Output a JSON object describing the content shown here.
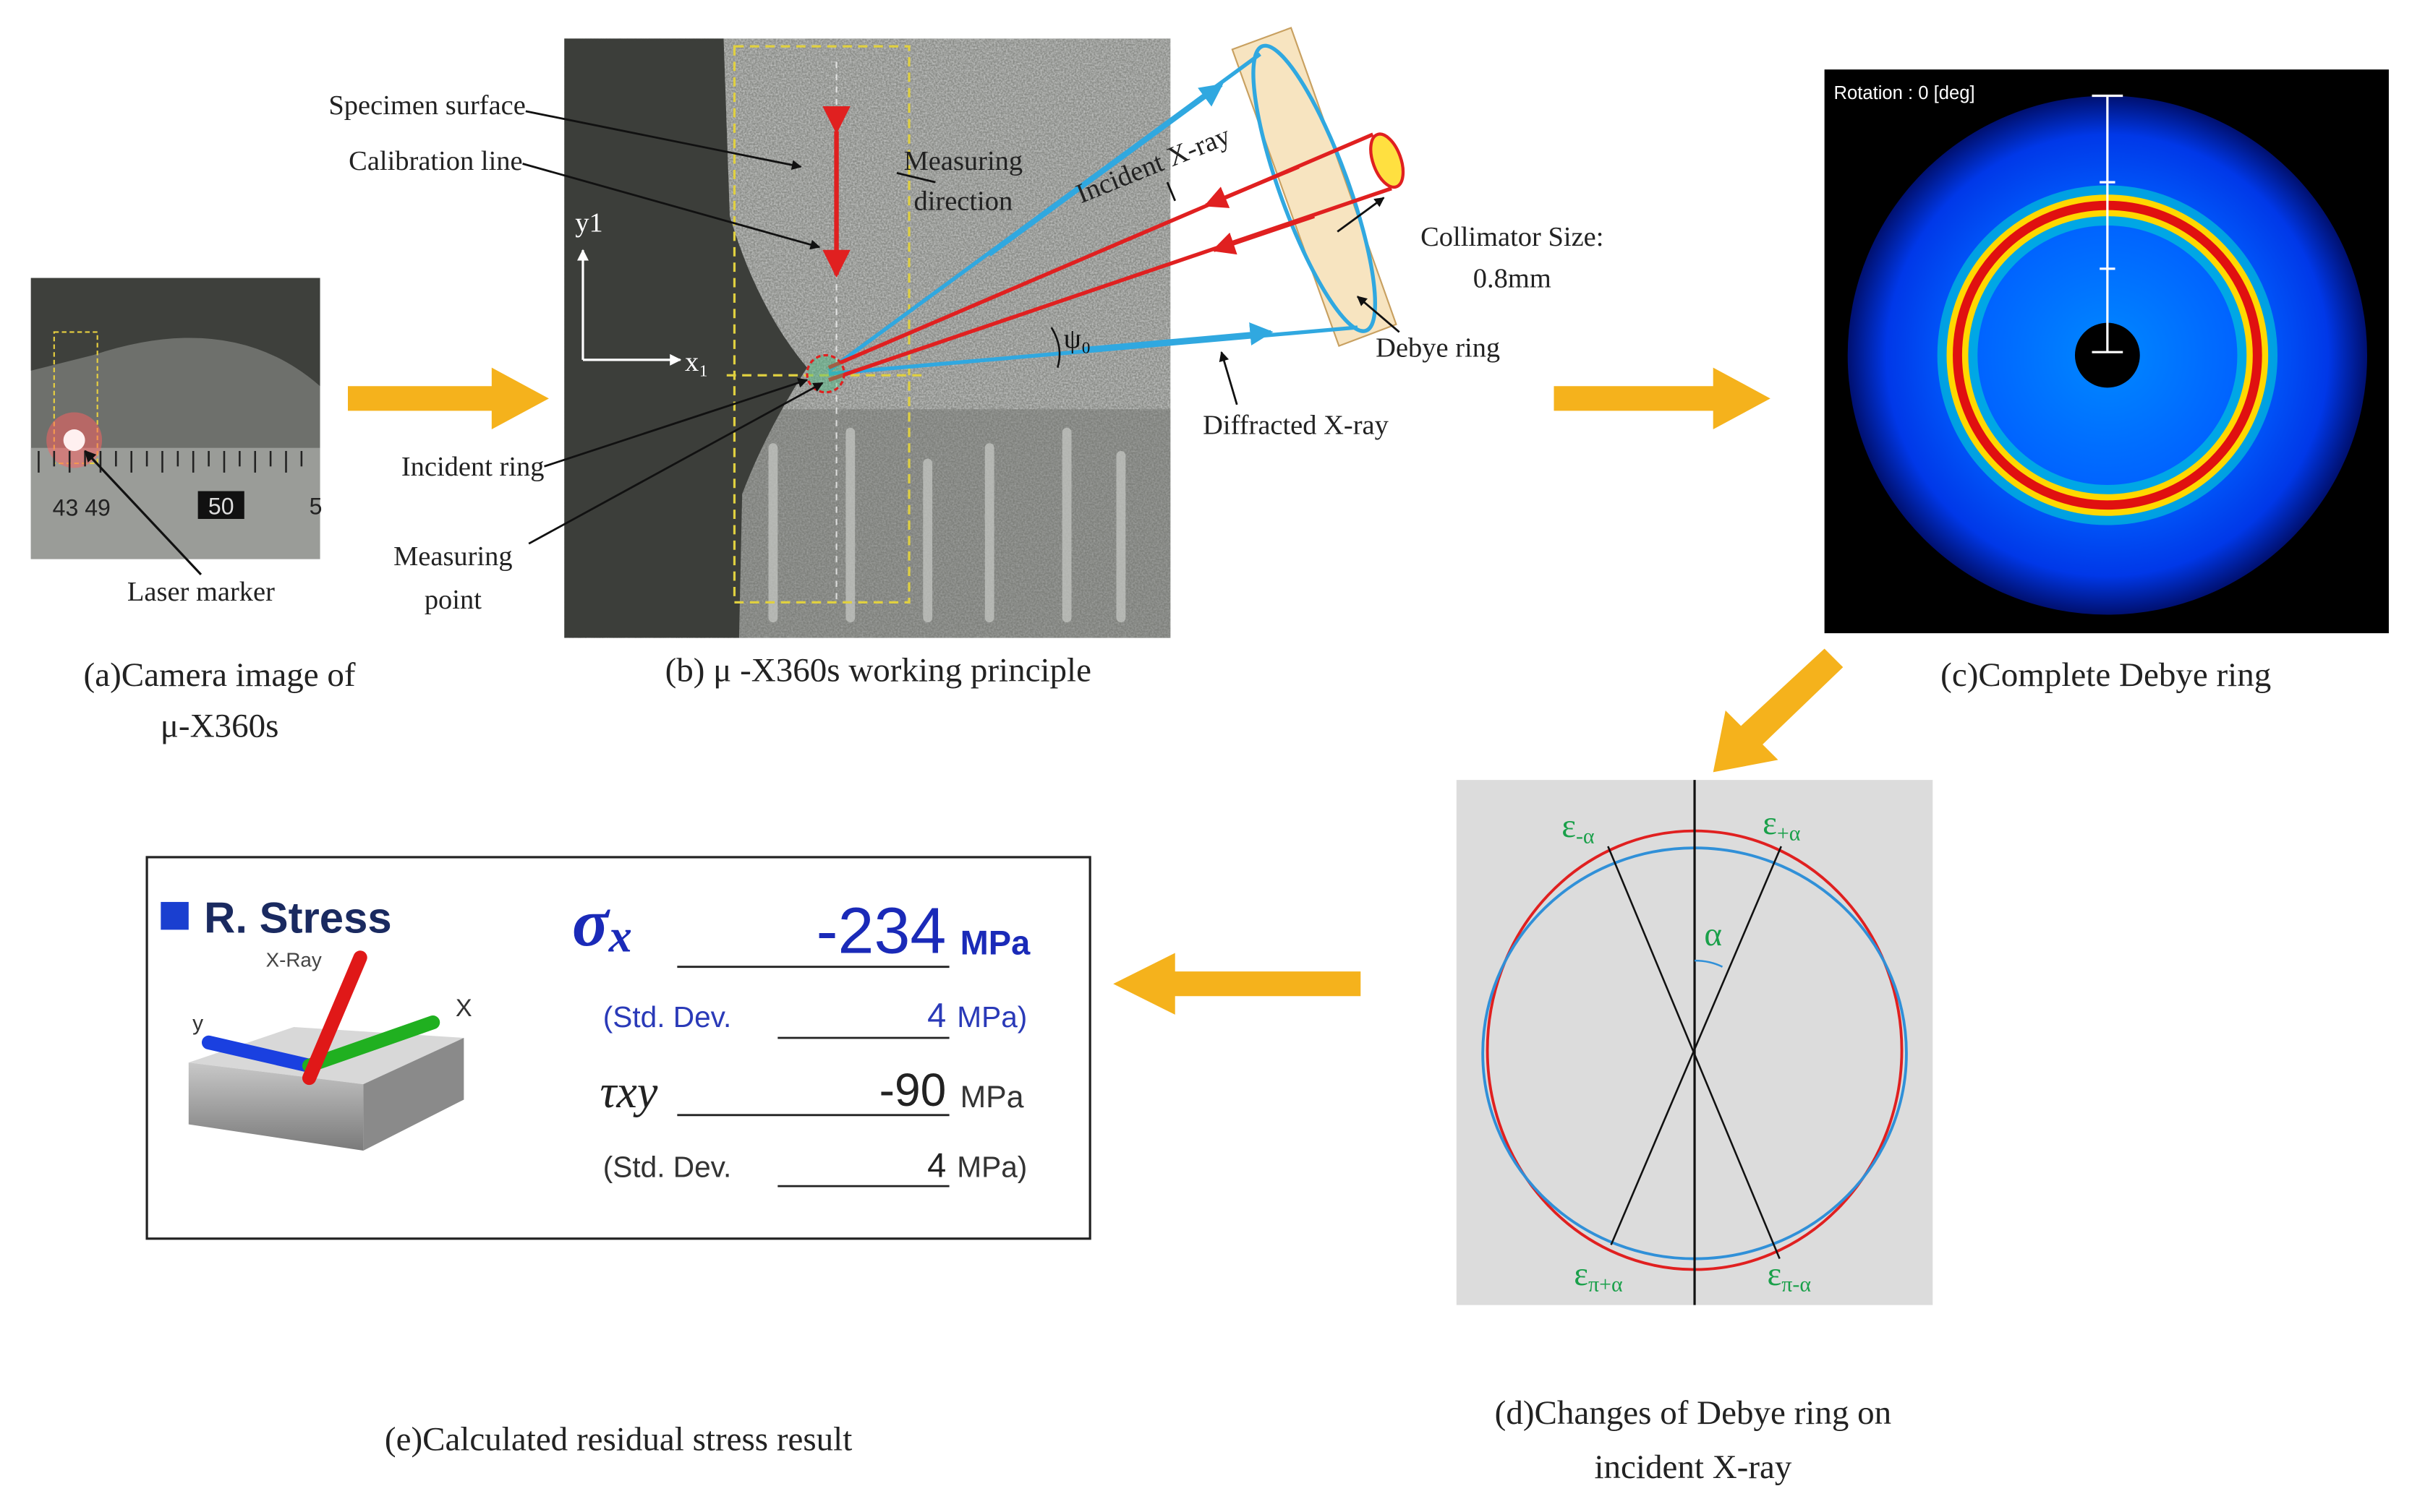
{
  "panel_a": {
    "caption": [
      "(a)Camera image of",
      "μ-X360s"
    ],
    "label": "Laser marker",
    "ruler_labels": [
      "43 49",
      "50",
      "5"
    ]
  },
  "panel_b": {
    "caption": "(b) μ -X360s working principle",
    "specimen_surface": "Specimen surface",
    "calibration_line": "Calibration line",
    "measuring_direction": [
      "Measuring",
      "direction"
    ],
    "incident_xray": "Incident X-ray",
    "axis_y": "y1",
    "axis_x": "x₁",
    "angle": "ψ₀",
    "incident_ring": "Incident ring",
    "measuring_point": [
      "Measuring",
      "point"
    ],
    "collimator": [
      "Collimator Size:",
      "0.8mm"
    ],
    "debye_ring": "Debye ring",
    "diffracted_xray": "Diffracted X-ray"
  },
  "panel_c": {
    "caption": "(c)Complete Debye ring",
    "rotation_label": "Rotation : 0 [deg]"
  },
  "panel_d": {
    "caption": [
      "(d)Changes of Debye ring on",
      "incident X-ray"
    ],
    "strains": [
      {
        "symbol": "ε",
        "sub": "-α"
      },
      {
        "symbol": "ε",
        "sub": "+α"
      },
      {
        "symbol": "ε",
        "sub": "π+α"
      },
      {
        "symbol": "ε",
        "sub": "π-α"
      }
    ],
    "angle": "α"
  },
  "panel_e": {
    "caption": "(e)Calculated residual stress result",
    "title": "R. Stress",
    "icon_labels": [
      "X-Ray",
      "y",
      "X"
    ],
    "sigma": {
      "symbol": "σ",
      "sub": "x",
      "value": -234,
      "unit": "MPa"
    },
    "sigma_dev": {
      "prefix": "(Std. Dev.",
      "value": 4,
      "unit": "MPa)"
    },
    "tau": {
      "symbol": "τxy",
      "value": -90,
      "unit": "MPa"
    },
    "tau_dev": {
      "prefix": "(Std. Dev.",
      "value": 4,
      "unit": "MPa)"
    }
  }
}
